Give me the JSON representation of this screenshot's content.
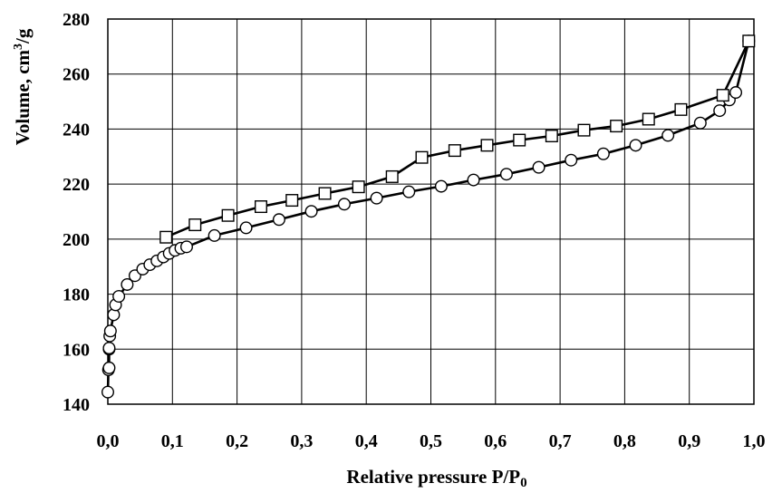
{
  "chart_data": {
    "type": "line",
    "xlabel_main": "Relative pressure P/P",
    "xlabel_sub": "0",
    "ylabel_main": "Volume, cm",
    "ylabel_sup": "3",
    "ylabel_tail": "/g",
    "xlim": [
      0,
      1
    ],
    "ylim": [
      140,
      280
    ],
    "x_ticks": [
      0,
      0.1,
      0.2,
      0.3,
      0.4,
      0.5,
      0.6,
      0.7,
      0.8,
      0.9,
      1.0
    ],
    "x_tick_labels": [
      "0,0",
      "0,1",
      "0,2",
      "0,3",
      "0,4",
      "0,5",
      "0,6",
      "0,7",
      "0,8",
      "0,9",
      "1,0"
    ],
    "y_ticks": [
      140,
      160,
      180,
      200,
      220,
      240,
      260,
      280
    ],
    "y_tick_labels": [
      "140",
      "160",
      "180",
      "200",
      "220",
      "240",
      "260",
      "280"
    ],
    "grid": true,
    "series": [
      {
        "marker": "circle",
        "points": [
          [
            0.0,
            144.4
          ],
          [
            0.001,
            152.5
          ],
          [
            0.002,
            153.2
          ],
          [
            0.002,
            160.0
          ],
          [
            0.002,
            160.4
          ],
          [
            0.003,
            164.8
          ],
          [
            0.004,
            166.6
          ],
          [
            0.009,
            172.5
          ],
          [
            0.012,
            176.1
          ],
          [
            0.017,
            179.2
          ],
          [
            0.03,
            183.5
          ],
          [
            0.042,
            186.7
          ],
          [
            0.054,
            189.1
          ],
          [
            0.065,
            190.7
          ],
          [
            0.076,
            192.1
          ],
          [
            0.086,
            193.5
          ],
          [
            0.095,
            194.8
          ],
          [
            0.104,
            195.9
          ],
          [
            0.113,
            196.7
          ],
          [
            0.122,
            197.2
          ],
          [
            0.165,
            201.3
          ],
          [
            0.214,
            204.1
          ],
          [
            0.265,
            207.1
          ],
          [
            0.315,
            210.1
          ],
          [
            0.366,
            212.7
          ],
          [
            0.416,
            214.9
          ],
          [
            0.466,
            217.2
          ],
          [
            0.516,
            219.2
          ],
          [
            0.566,
            221.5
          ],
          [
            0.617,
            223.6
          ],
          [
            0.667,
            226.1
          ],
          [
            0.717,
            228.7
          ],
          [
            0.767,
            231.0
          ],
          [
            0.817,
            234.1
          ],
          [
            0.867,
            237.7
          ],
          [
            0.917,
            242.2
          ],
          [
            0.947,
            246.7
          ],
          [
            0.962,
            250.6
          ],
          [
            0.972,
            253.3
          ],
          [
            0.992,
            272.0
          ]
        ]
      },
      {
        "marker": "square",
        "points": [
          [
            0.992,
            272.0
          ],
          [
            0.952,
            252.3
          ],
          [
            0.887,
            247.1
          ],
          [
            0.837,
            243.6
          ],
          [
            0.787,
            241.1
          ],
          [
            0.737,
            239.6
          ],
          [
            0.687,
            237.5
          ],
          [
            0.637,
            236.0
          ],
          [
            0.587,
            234.1
          ],
          [
            0.537,
            232.2
          ],
          [
            0.486,
            229.7
          ],
          [
            0.44,
            222.7
          ],
          [
            0.388,
            219.0
          ],
          [
            0.336,
            216.6
          ],
          [
            0.285,
            214.1
          ],
          [
            0.237,
            211.8
          ],
          [
            0.186,
            208.6
          ],
          [
            0.135,
            205.2
          ],
          [
            0.09,
            200.7
          ]
        ]
      }
    ]
  }
}
